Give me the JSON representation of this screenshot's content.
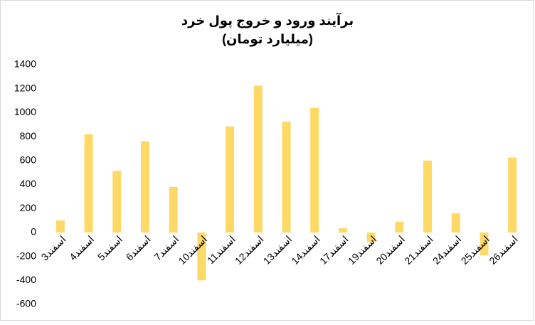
{
  "chart_data": {
    "type": "bar",
    "title": "برآیند ورود و خروج پول خرد",
    "subtitle": "(میلیارد تومان)",
    "categories": [
      "3اسفند",
      "4اسفند",
      "5اسفند",
      "6اسفند",
      "7اسفند",
      "10اسفند",
      "11اسفند",
      "12اسفند",
      "13اسفند",
      "14اسفند",
      "17اسفند",
      "19اسفند",
      "20اسفند",
      "21اسفند",
      "24اسفند",
      "25اسفند",
      "26اسفند"
    ],
    "values": [
      100,
      820,
      515,
      760,
      380,
      -400,
      885,
      1225,
      925,
      1040,
      35,
      -80,
      90,
      600,
      160,
      -190,
      625
    ],
    "color": "#ffd966",
    "ylim": [
      -600,
      1400
    ],
    "yticks": [
      -600,
      -400,
      -200,
      0,
      200,
      400,
      600,
      800,
      1000,
      1200,
      1400
    ],
    "grid": false
  }
}
